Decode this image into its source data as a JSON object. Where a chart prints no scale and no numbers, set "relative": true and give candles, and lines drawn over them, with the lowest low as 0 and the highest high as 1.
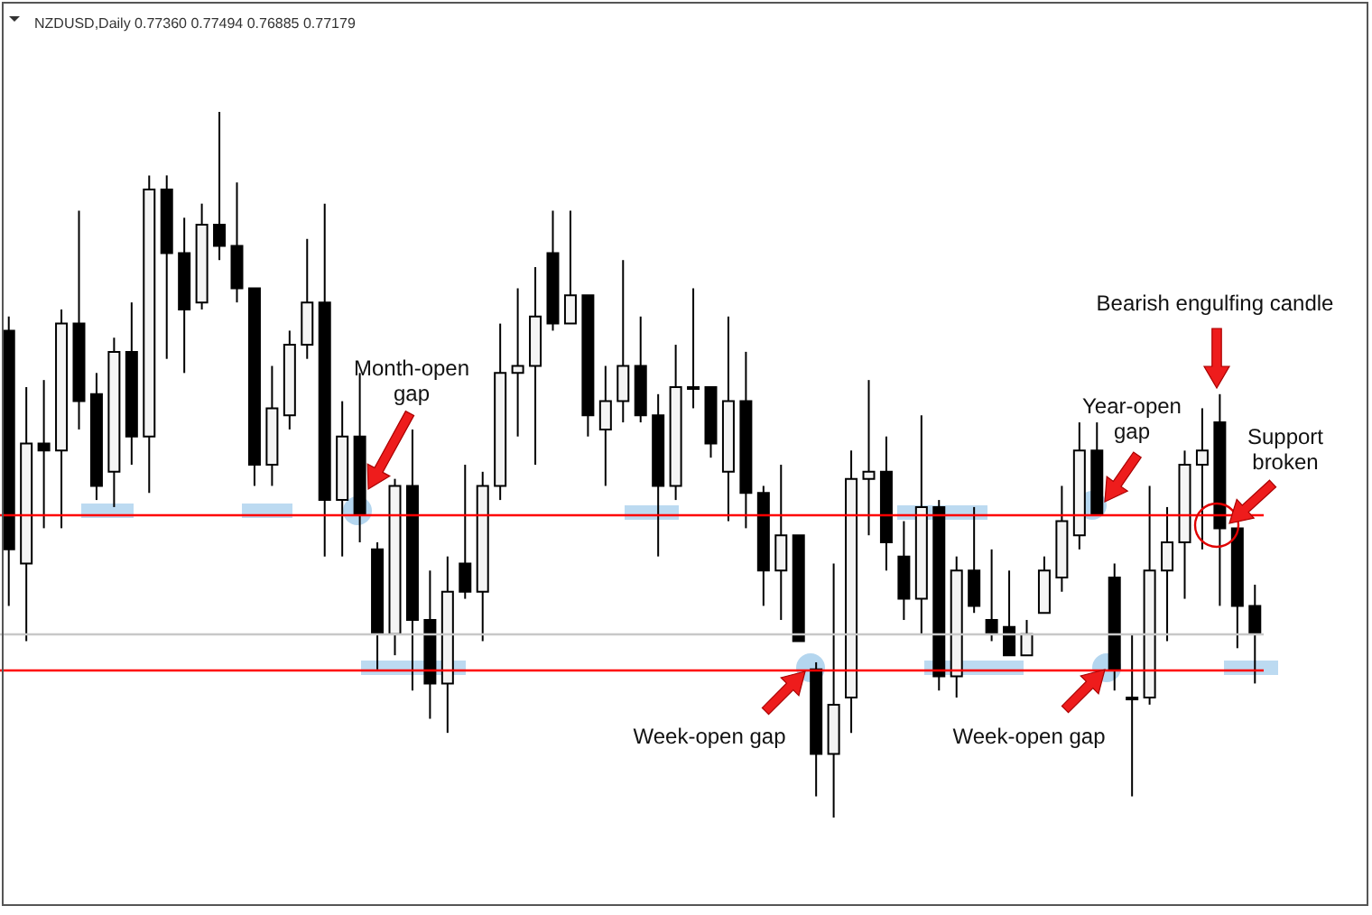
{
  "chart_data": {
    "type": "candlestick",
    "title": "NZDUSD,Daily 0.77360 0.77494 0.76885 0.77179",
    "relative": true,
    "categories": [
      null,
      null,
      null,
      null,
      null,
      null,
      null,
      null,
      null,
      null,
      null,
      null,
      null,
      null,
      null,
      null,
      null,
      null,
      null,
      null,
      null,
      null,
      null,
      null,
      null,
      null,
      null,
      null,
      null,
      null,
      null,
      null,
      null,
      null,
      null,
      null,
      null,
      null,
      null,
      null,
      null,
      null,
      null,
      null,
      null,
      null,
      null,
      null,
      null,
      null,
      null,
      null,
      null,
      null,
      null,
      null,
      null,
      null,
      null,
      null,
      null,
      null,
      null,
      null,
      null,
      null,
      null,
      null,
      null,
      null,
      null,
      null
    ],
    "ohlc": [
      [
        0.69,
        0.71,
        0.3,
        0.38
      ],
      [
        0.36,
        0.61,
        0.25,
        0.53
      ],
      [
        0.53,
        0.62,
        0.41,
        0.52
      ],
      [
        0.52,
        0.72,
        0.41,
        0.7
      ],
      [
        0.7,
        0.86,
        0.55,
        0.59
      ],
      [
        0.6,
        0.63,
        0.45,
        0.47
      ],
      [
        0.49,
        0.68,
        0.44,
        0.66
      ],
      [
        0.66,
        0.73,
        0.5,
        0.54
      ],
      [
        0.54,
        0.91,
        0.46,
        0.89
      ],
      [
        0.89,
        0.91,
        0.65,
        0.8
      ],
      [
        0.8,
        0.85,
        0.63,
        0.72
      ],
      [
        0.73,
        0.87,
        0.72,
        0.84
      ],
      [
        0.84,
        1.0,
        0.79,
        0.81
      ],
      [
        0.81,
        0.9,
        0.73,
        0.75
      ],
      [
        0.75,
        0.75,
        0.47,
        0.5
      ],
      [
        0.5,
        0.64,
        0.47,
        0.58
      ],
      [
        0.57,
        0.69,
        0.55,
        0.67
      ],
      [
        0.67,
        0.82,
        0.65,
        0.73
      ],
      [
        0.73,
        0.87,
        0.37,
        0.45
      ],
      [
        0.45,
        0.59,
        0.37,
        0.54
      ],
      [
        0.54,
        0.63,
        0.39,
        0.43
      ],
      [
        0.38,
        0.39,
        0.21,
        0.26
      ],
      [
        0.26,
        0.48,
        0.23,
        0.47
      ],
      [
        0.47,
        0.55,
        0.18,
        0.28
      ],
      [
        0.28,
        0.35,
        0.14,
        0.19
      ],
      [
        0.19,
        0.37,
        0.12,
        0.32
      ],
      [
        0.36,
        0.5,
        0.31,
        0.32
      ],
      [
        0.32,
        0.49,
        0.25,
        0.47
      ],
      [
        0.47,
        0.7,
        0.45,
        0.63
      ],
      [
        0.63,
        0.75,
        0.54,
        0.64
      ],
      [
        0.64,
        0.78,
        0.5,
        0.71
      ],
      [
        0.8,
        0.86,
        0.69,
        0.7
      ],
      [
        0.7,
        0.86,
        0.7,
        0.74
      ],
      [
        0.74,
        0.74,
        0.54,
        0.57
      ],
      [
        0.55,
        0.64,
        0.47,
        0.59
      ],
      [
        0.59,
        0.79,
        0.56,
        0.64
      ],
      [
        0.64,
        0.71,
        0.56,
        0.57
      ],
      [
        0.57,
        0.6,
        0.37,
        0.47
      ],
      [
        0.47,
        0.67,
        0.45,
        0.61
      ],
      [
        0.61,
        0.75,
        0.58,
        0.61
      ],
      [
        0.61,
        0.61,
        0.51,
        0.53
      ],
      [
        0.49,
        0.71,
        0.42,
        0.59
      ],
      [
        0.59,
        0.66,
        0.41,
        0.46
      ],
      [
        0.46,
        0.47,
        0.3,
        0.35
      ],
      [
        0.35,
        0.5,
        0.28,
        0.4
      ],
      [
        0.4,
        0.4,
        0.25,
        0.25
      ],
      [
        0.21,
        0.22,
        0.03,
        0.09
      ],
      [
        0.09,
        0.36,
        0.0,
        0.16
      ],
      [
        0.17,
        0.52,
        0.12,
        0.48
      ],
      [
        0.48,
        0.62,
        0.4,
        0.49
      ],
      [
        0.49,
        0.54,
        0.35,
        0.39
      ],
      [
        0.37,
        0.42,
        0.28,
        0.31
      ],
      [
        0.31,
        0.57,
        0.26,
        0.44
      ],
      [
        0.44,
        0.45,
        0.18,
        0.2
      ],
      [
        0.2,
        0.37,
        0.17,
        0.35
      ],
      [
        0.35,
        0.44,
        0.29,
        0.3
      ],
      [
        0.28,
        0.38,
        0.25,
        0.26
      ],
      [
        0.27,
        0.35,
        0.23,
        0.23
      ],
      [
        0.23,
        0.28,
        0.23,
        0.26
      ],
      [
        0.29,
        0.37,
        0.29,
        0.35
      ],
      [
        0.34,
        0.47,
        0.32,
        0.42
      ],
      [
        0.4,
        0.56,
        0.38,
        0.52
      ],
      [
        0.52,
        0.56,
        0.43,
        0.43
      ],
      [
        0.34,
        0.36,
        0.18,
        0.21
      ],
      [
        0.17,
        0.26,
        0.03,
        0.17
      ],
      [
        0.17,
        0.47,
        0.16,
        0.35
      ],
      [
        0.35,
        0.44,
        0.25,
        0.39
      ],
      [
        0.39,
        0.52,
        0.31,
        0.5
      ],
      [
        0.5,
        0.58,
        0.38,
        0.52
      ],
      [
        0.56,
        0.6,
        0.3,
        0.41
      ],
      [
        0.41,
        0.41,
        0.24,
        0.3
      ],
      [
        0.3,
        0.33,
        0.19,
        0.26
      ]
    ],
    "ref_lines": [
      {
        "axis": "y",
        "value": 0.43,
        "color": "#ff0000"
      },
      {
        "axis": "y",
        "value": 0.21,
        "color": "#ff0000"
      },
      {
        "axis": "y",
        "value": 0.26,
        "color": "#c8c8c8"
      }
    ],
    "annotations": [
      "Month-open gap",
      "Week-open gap",
      "Week-open gap",
      "Year-open gap",
      "Bearish engulfing candle",
      "Support broken"
    ]
  }
}
